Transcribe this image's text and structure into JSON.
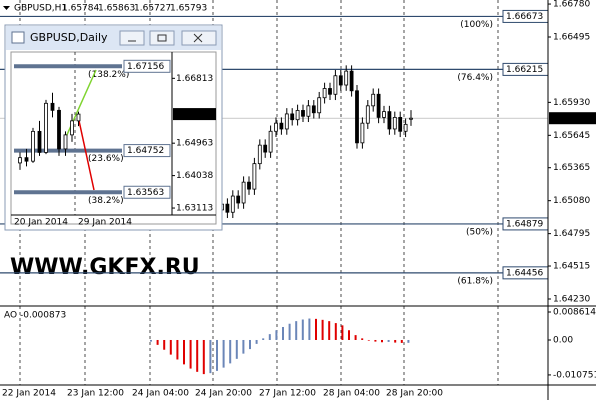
{
  "chart_data": [
    {
      "type": "candlestick",
      "title": "GBPUSD,H1",
      "watermark": "WWW.GKFX.RU",
      "x_labels": [
        "22 Jan 2014",
        "23 Jan 12:00",
        "24 Jan 04:00",
        "24 Jan 20:00",
        "27 Jan 12:00",
        "28 Jan 04:00",
        "28 Jan 20:00"
      ],
      "open": [
        1.65,
        1.6505,
        1.6498,
        1.6512,
        1.6506,
        1.6524,
        1.6518,
        1.654,
        1.6556,
        1.655,
        1.6568,
        1.6575,
        1.657,
        1.6583,
        1.6578,
        1.6586,
        1.6581,
        1.659,
        1.6584,
        1.6597,
        1.6605,
        1.66,
        1.6616,
        1.6608,
        1.662,
        1.6603,
        1.6558,
        1.6575,
        1.659,
        1.66,
        1.658,
        1.6585,
        1.657,
        1.658,
        1.6568,
        1.65784
      ],
      "high": [
        1.651,
        1.651,
        1.6517,
        1.6517,
        1.6529,
        1.6529,
        1.6545,
        1.6561,
        1.6561,
        1.6573,
        1.658,
        1.658,
        1.6588,
        1.6588,
        1.6591,
        1.6591,
        1.6595,
        1.6595,
        1.6602,
        1.661,
        1.661,
        1.6621,
        1.6621,
        1.6625,
        1.6625,
        1.6608,
        1.658,
        1.6595,
        1.6605,
        1.6605,
        1.659,
        1.659,
        1.6585,
        1.6585,
        1.6579,
        1.65863
      ],
      "low": [
        1.6495,
        1.6493,
        1.6493,
        1.6501,
        1.6501,
        1.6513,
        1.6513,
        1.6535,
        1.6545,
        1.6545,
        1.6563,
        1.6565,
        1.6565,
        1.6573,
        1.6573,
        1.6576,
        1.6576,
        1.6579,
        1.6579,
        1.6592,
        1.6595,
        1.6595,
        1.6603,
        1.6603,
        1.6598,
        1.6553,
        1.6553,
        1.657,
        1.6585,
        1.6575,
        1.6575,
        1.6565,
        1.6565,
        1.6563,
        1.6563,
        1.65727
      ],
      "close": [
        1.6505,
        1.6498,
        1.6512,
        1.6506,
        1.6524,
        1.6518,
        1.654,
        1.6556,
        1.655,
        1.6568,
        1.6575,
        1.657,
        1.6583,
        1.6578,
        1.6586,
        1.6581,
        1.659,
        1.6584,
        1.6597,
        1.6605,
        1.66,
        1.6616,
        1.6608,
        1.662,
        1.6603,
        1.6558,
        1.6575,
        1.659,
        1.66,
        1.658,
        1.6585,
        1.657,
        1.658,
        1.6568,
        1.6574,
        1.65793
      ],
      "ylim": [
        1.64178,
        1.66815
      ],
      "yticks": [
        {
          "value": 1.6678,
          "label": "1.66780"
        },
        1.66495,
        {
          "value": 1.6593,
          "label": "1.65930"
        },
        1.65645,
        1.65365,
        {
          "value": 1.6508,
          "label": "1.65080"
        },
        1.64795,
        1.64515,
        {
          "value": 1.6423,
          "label": "1.64230"
        }
      ],
      "levels": [
        {
          "value": 1.66673,
          "label": "(100%)"
        },
        {
          "value": 1.66215,
          "label": "(76.4%)"
        },
        {
          "value": 1.64879,
          "label": "(50%)"
        },
        {
          "value": 1.64456,
          "label": "(61.8%)"
        }
      ],
      "level_color": "#2f4a6e",
      "bull_color": "#ffffff",
      "bear_color": "#000000",
      "grid": true
    },
    {
      "type": "candlestick",
      "title": "GBPUSD,Daily",
      "x_labels": [
        "20 Jan 2014",
        "29 Jan 2014"
      ],
      "open": [
        1.644,
        1.6455,
        1.6445,
        1.653,
        1.647,
        1.661,
        1.659,
        1.648,
        1.652,
        1.656
      ],
      "high": [
        1.647,
        1.648,
        1.654,
        1.656,
        1.662,
        1.664,
        1.66,
        1.653,
        1.658,
        1.65863
      ],
      "low": [
        1.642,
        1.643,
        1.644,
        1.646,
        1.6465,
        1.657,
        1.646,
        1.646,
        1.65,
        1.6545
      ],
      "close": [
        1.6455,
        1.6445,
        1.653,
        1.647,
        1.661,
        1.659,
        1.648,
        1.652,
        1.656,
        1.65793
      ],
      "ylim": [
        1.63,
        1.6745
      ],
      "yticks": [
        1.66813,
        1.64963,
        1.64038,
        1.63113
      ],
      "levels": [
        {
          "value": 1.67156,
          "label": "(138.2%)"
        },
        {
          "value": 1.64752,
          "label": "(23.6%)"
        },
        {
          "value": 1.63563,
          "label": "(38.2%)"
        }
      ],
      "level_color": "#5f7391",
      "bull_color": "#ffffff",
      "bear_color": "#000000"
    },
    {
      "type": "bar",
      "title": "AO",
      "values": [
        -0.0005,
        -0.0015,
        -0.003,
        -0.0045,
        -0.006,
        -0.0075,
        -0.0088,
        -0.0098,
        -0.0105,
        -0.0102,
        -0.0095,
        -0.0085,
        -0.0072,
        -0.0058,
        -0.0042,
        -0.0028,
        -0.0012,
        0.0005,
        0.0018,
        0.003,
        0.004,
        0.005,
        0.0058,
        0.0063,
        0.0066,
        0.0065,
        0.0062,
        0.0058,
        0.0052,
        0.0045,
        0.003,
        0.0015,
        0.0005,
        -0.0002,
        -0.0005,
        -0.0007,
        -0.0006,
        -0.0008,
        -0.0009,
        -0.000873
      ],
      "ylim": [
        -0.01385,
        0.01015
      ],
      "yticks": [
        0.008614,
        {
          "value": 0,
          "label": "0.00"
        },
        -0.010751
      ],
      "up_color": "#6b86b8",
      "down_color": "#e00000"
    }
  ]
}
